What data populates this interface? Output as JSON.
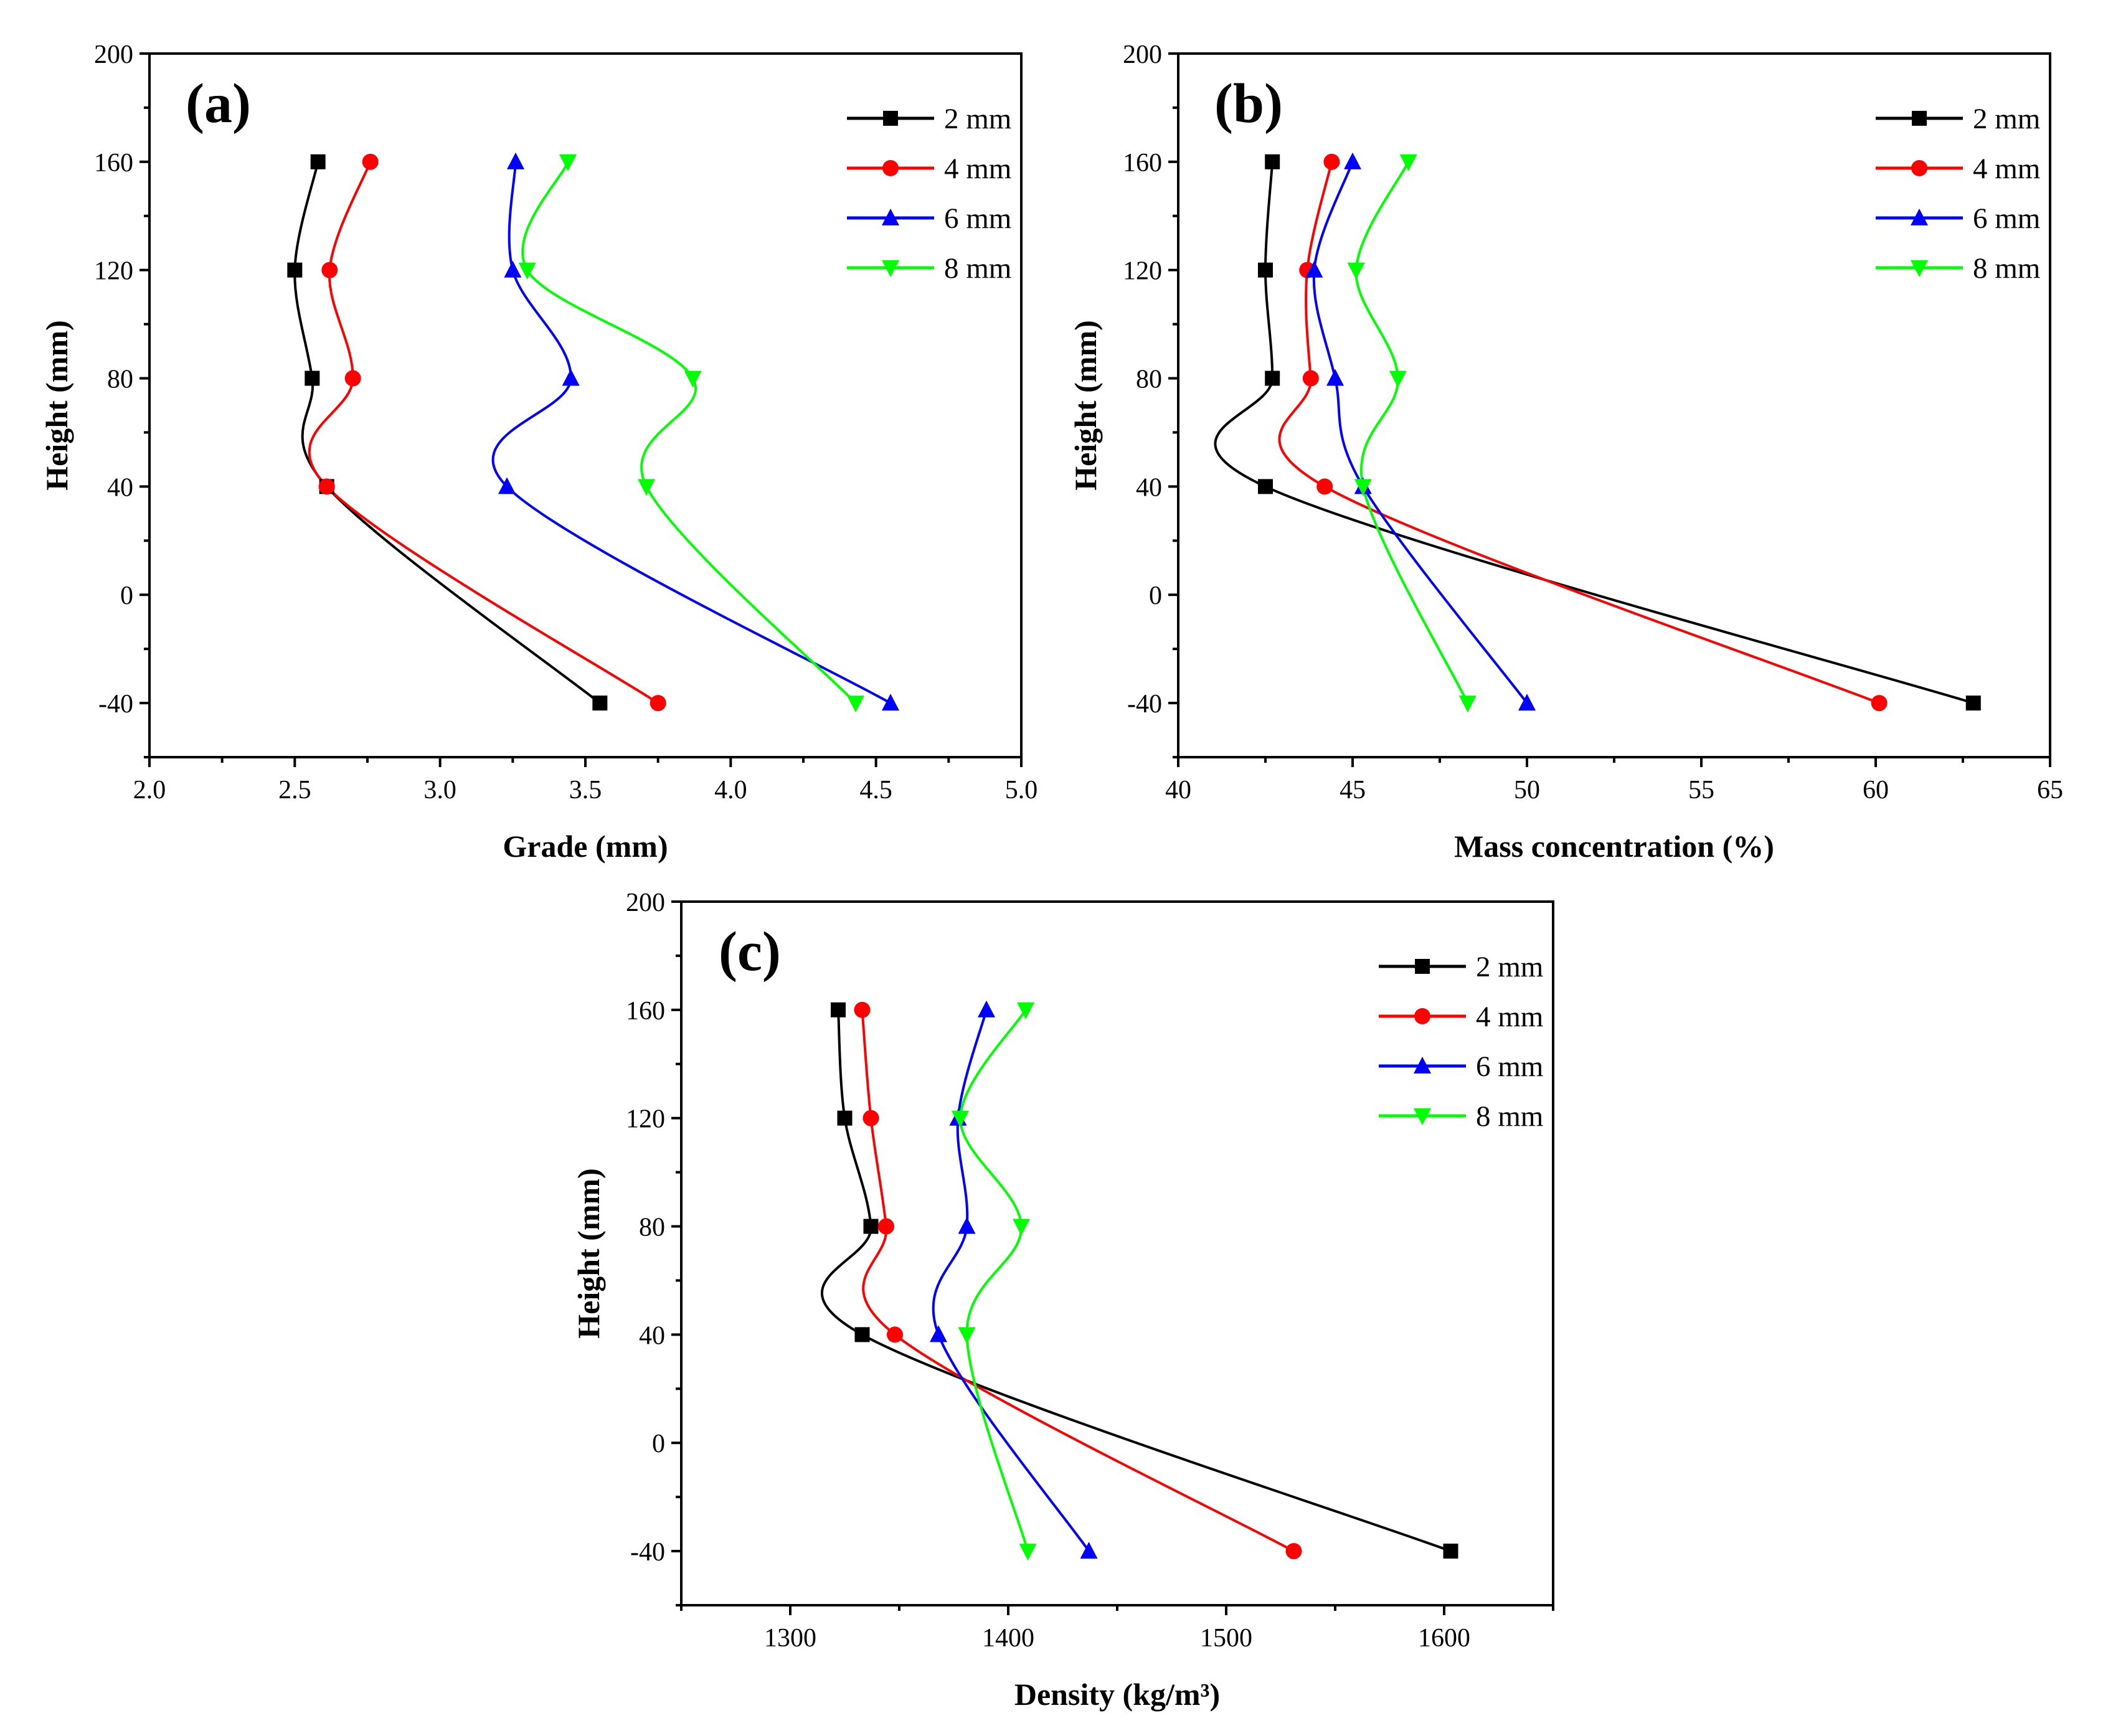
{
  "chart_data": [
    {
      "type": "scatter",
      "panel_label": "(a)",
      "xlabel": "Grade (mm)",
      "ylabel": "Height (mm)",
      "xlim": [
        2.0,
        5.0
      ],
      "ylim": [
        -60,
        200
      ],
      "xticks": [
        "2.0",
        "2.5",
        "3.0",
        "3.5",
        "4.0",
        "4.5",
        "5.0"
      ],
      "yticks": [
        "-40",
        "0",
        "40",
        "80",
        "120",
        "160",
        "200"
      ],
      "legend_position": "top-right",
      "series": [
        {
          "name": "2 mm",
          "color": "#000000",
          "marker": "square",
          "points": [
            [
              2.58,
              160
            ],
            [
              2.5,
              120
            ],
            [
              2.56,
              80
            ],
            [
              2.61,
              40
            ],
            [
              3.55,
              -40
            ]
          ]
        },
        {
          "name": "4 mm",
          "color": "#ff0000",
          "marker": "circle",
          "points": [
            [
              2.76,
              160
            ],
            [
              2.62,
              120
            ],
            [
              2.7,
              80
            ],
            [
              2.61,
              40
            ],
            [
              3.75,
              -40
            ]
          ]
        },
        {
          "name": "6 mm",
          "color": "#0000ff",
          "marker": "triangle-up",
          "points": [
            [
              3.26,
              160
            ],
            [
              3.25,
              120
            ],
            [
              3.45,
              80
            ],
            [
              3.23,
              40
            ],
            [
              4.55,
              -40
            ]
          ]
        },
        {
          "name": "8 mm",
          "color": "#00ff00",
          "marker": "triangle-down",
          "points": [
            [
              3.44,
              160
            ],
            [
              3.3,
              120
            ],
            [
              3.87,
              80
            ],
            [
              3.71,
              40
            ],
            [
              4.43,
              -40
            ]
          ]
        }
      ]
    },
    {
      "type": "scatter",
      "panel_label": "(b)",
      "xlabel": "Mass concentration (%)",
      "ylabel": "Height (mm)",
      "xlim": [
        40,
        65
      ],
      "ylim": [
        -60,
        200
      ],
      "xticks": [
        "40",
        "45",
        "50",
        "55",
        "60",
        "65"
      ],
      "yticks": [
        "-40",
        "0",
        "40",
        "80",
        "120",
        "160",
        "200"
      ],
      "legend_position": "top-right",
      "series": [
        {
          "name": "2 mm",
          "color": "#000000",
          "marker": "square",
          "points": [
            [
              42.7,
              160
            ],
            [
              42.5,
              120
            ],
            [
              42.7,
              80
            ],
            [
              42.5,
              40
            ],
            [
              62.8,
              -40
            ]
          ]
        },
        {
          "name": "4 mm",
          "color": "#ff0000",
          "marker": "circle",
          "points": [
            [
              44.4,
              160
            ],
            [
              43.7,
              120
            ],
            [
              43.8,
              80
            ],
            [
              44.2,
              40
            ],
            [
              60.1,
              -40
            ]
          ]
        },
        {
          "name": "6 mm",
          "color": "#0000ff",
          "marker": "triangle-up",
          "points": [
            [
              45.0,
              160
            ],
            [
              43.9,
              120
            ],
            [
              44.5,
              80
            ],
            [
              45.3,
              40
            ],
            [
              50.0,
              -40
            ]
          ]
        },
        {
          "name": "8 mm",
          "color": "#00ff00",
          "marker": "triangle-down",
          "points": [
            [
              46.6,
              160
            ],
            [
              45.1,
              120
            ],
            [
              46.3,
              80
            ],
            [
              45.3,
              40
            ],
            [
              48.3,
              -40
            ]
          ]
        }
      ]
    },
    {
      "type": "scatter",
      "panel_label": "(c)",
      "xlabel": "Density (kg/m³)",
      "ylabel": "Height (mm)",
      "xlim": [
        1250,
        1650
      ],
      "ylim": [
        -60,
        200
      ],
      "xticks": [
        "1300",
        "1400",
        "1500",
        "1600"
      ],
      "yticks": [
        "-40",
        "0",
        "40",
        "80",
        "120",
        "160",
        "200"
      ],
      "legend_position": "top-right",
      "series": [
        {
          "name": "2 mm",
          "color": "#000000",
          "marker": "square",
          "points": [
            [
              1322,
              160
            ],
            [
              1325,
              120
            ],
            [
              1337,
              80
            ],
            [
              1333,
              40
            ],
            [
              1603,
              -40
            ]
          ]
        },
        {
          "name": "4 mm",
          "color": "#ff0000",
          "marker": "circle",
          "points": [
            [
              1333,
              160
            ],
            [
              1337,
              120
            ],
            [
              1344,
              80
            ],
            [
              1348,
              40
            ],
            [
              1531,
              -40
            ]
          ]
        },
        {
          "name": "6 mm",
          "color": "#0000ff",
          "marker": "triangle-up",
          "points": [
            [
              1390,
              160
            ],
            [
              1377,
              120
            ],
            [
              1381,
              80
            ],
            [
              1368,
              40
            ],
            [
              1437,
              -40
            ]
          ]
        },
        {
          "name": "8 mm",
          "color": "#00ff00",
          "marker": "triangle-down",
          "points": [
            [
              1408,
              160
            ],
            [
              1378,
              120
            ],
            [
              1406,
              80
            ],
            [
              1381,
              40
            ],
            [
              1409,
              -40
            ]
          ]
        }
      ]
    }
  ]
}
